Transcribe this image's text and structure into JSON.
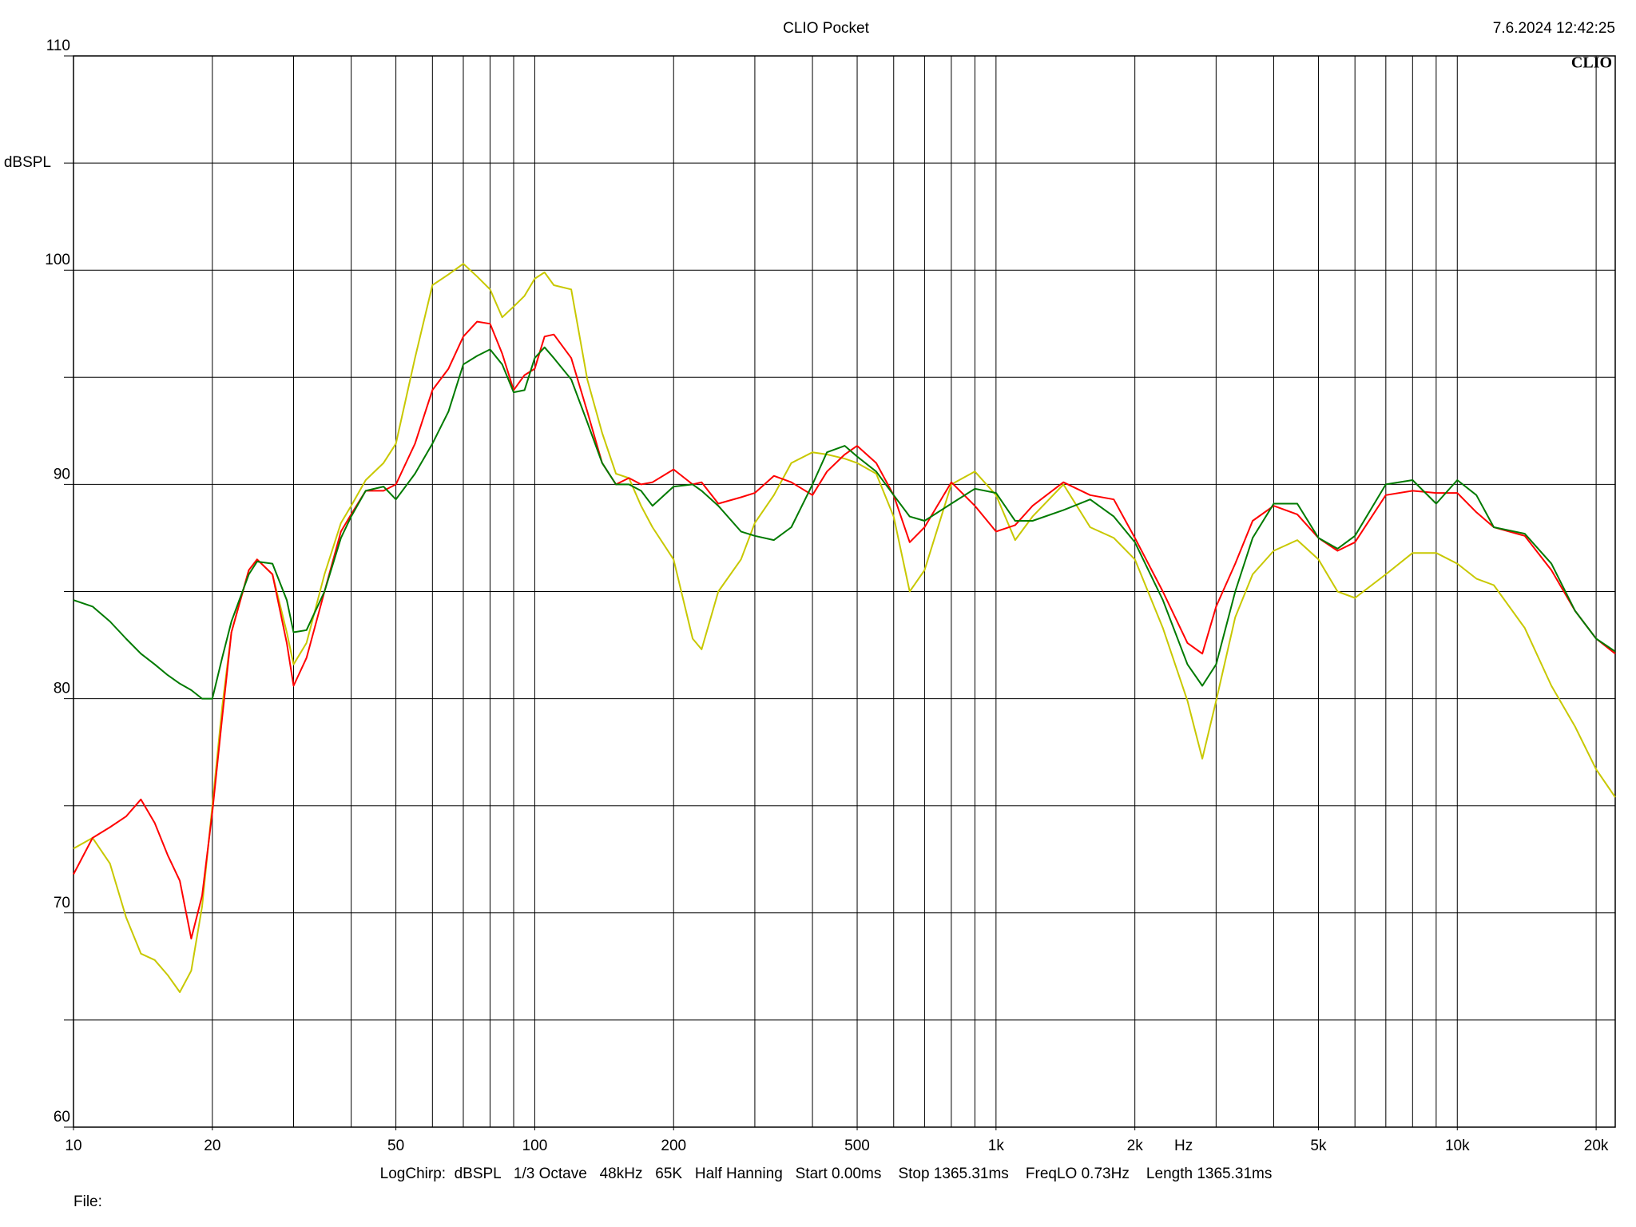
{
  "chart_data": {
    "type": "line",
    "title": "CLIO Pocket",
    "timestamp": "7.6.2024 12:42:25",
    "logo": "CLIO",
    "ylabel": "dBSPL",
    "xlabel": "Hz",
    "footer": "LogChirp:  dBSPL   1/3 Octave   48kHz   65K   Half Hanning   Start 0.00ms    Stop 1365.31ms    FreqLO 0.73Hz    Length 1365.31ms",
    "file_label": "File:",
    "xscale": "log",
    "grid": true,
    "xlim": [
      10,
      22000
    ],
    "ylim": [
      60,
      110
    ],
    "xticks": [
      10,
      20,
      50,
      100,
      200,
      500,
      {
        "value": 1000,
        "label": "1k"
      },
      {
        "value": 2000,
        "label": "2k"
      },
      {
        "value": 5000,
        "label": "5k"
      },
      {
        "value": 10000,
        "label": "10k"
      },
      {
        "value": 20000,
        "label": "20k"
      }
    ],
    "minor_xticks": [
      30,
      40,
      60,
      70,
      80,
      90,
      300,
      400,
      600,
      700,
      800,
      900,
      3000,
      4000,
      6000,
      7000,
      8000,
      9000
    ],
    "yticks": [
      60,
      70,
      80,
      90,
      100,
      110
    ],
    "minor_yticks": [
      65,
      75,
      85,
      95,
      105
    ],
    "x": [
      10,
      11,
      12,
      13,
      14,
      15,
      16,
      17,
      18,
      19,
      20,
      21,
      22,
      24,
      25,
      27,
      29,
      30,
      32,
      35,
      38,
      40,
      43,
      47,
      50,
      55,
      60,
      65,
      70,
      75,
      80,
      85,
      90,
      95,
      100,
      105,
      110,
      120,
      130,
      140,
      150,
      160,
      170,
      180,
      200,
      220,
      230,
      250,
      280,
      300,
      330,
      360,
      400,
      430,
      470,
      500,
      550,
      600,
      650,
      700,
      800,
      900,
      1000,
      1100,
      1200,
      1400,
      1600,
      1800,
      2000,
      2300,
      2600,
      2800,
      3000,
      3300,
      3600,
      4000,
      4500,
      5000,
      5500,
      6000,
      7000,
      8000,
      9000,
      10000,
      11000,
      12000,
      14000,
      16000,
      18000,
      20000,
      22000
    ],
    "series": [
      {
        "color": "#c8c800",
        "values": [
          73.0,
          73.5,
          72.3,
          69.8,
          68.1,
          67.8,
          67.1,
          66.3,
          67.3,
          70.3,
          75.0,
          79.6,
          83.1,
          86.0,
          86.5,
          85.8,
          83.1,
          81.6,
          82.6,
          85.8,
          88.2,
          89.0,
          90.2,
          91.0,
          91.9,
          95.9,
          99.3,
          99.8,
          100.3,
          99.7,
          99.1,
          97.8,
          98.3,
          98.8,
          99.6,
          99.9,
          99.3,
          99.1,
          94.9,
          92.4,
          90.5,
          90.3,
          89.0,
          88.0,
          86.5,
          82.8,
          82.3,
          85.0,
          86.5,
          88.2,
          89.5,
          91.0,
          91.5,
          91.4,
          91.2,
          91.0,
          90.5,
          88.5,
          85.0,
          86.0,
          90.0,
          90.6,
          89.5,
          87.4,
          88.5,
          90.0,
          88.0,
          87.5,
          86.5,
          83.3,
          79.9,
          77.2,
          79.9,
          83.8,
          85.8,
          86.9,
          87.4,
          86.5,
          85.0,
          84.7,
          85.8,
          86.8,
          86.8,
          86.3,
          85.6,
          85.3,
          83.3,
          80.6,
          78.7,
          76.7,
          75.4
        ]
      },
      {
        "color": "#ff0000",
        "values": [
          71.8,
          73.5,
          74.0,
          74.5,
          75.3,
          74.2,
          72.7,
          71.5,
          68.8,
          70.8,
          74.7,
          79.1,
          83.1,
          86.0,
          86.5,
          85.8,
          82.6,
          80.6,
          81.9,
          85.0,
          87.8,
          88.6,
          89.7,
          89.7,
          90.0,
          91.9,
          94.4,
          95.4,
          96.9,
          97.6,
          97.5,
          96.1,
          94.4,
          95.1,
          95.4,
          96.9,
          97.0,
          95.9,
          93.4,
          91.0,
          90.0,
          90.3,
          90.0,
          90.1,
          90.7,
          90.0,
          90.1,
          89.1,
          89.4,
          89.6,
          90.4,
          90.1,
          89.5,
          90.6,
          91.4,
          91.8,
          91.0,
          89.5,
          87.3,
          88.0,
          90.1,
          89.0,
          87.8,
          88.1,
          89.0,
          90.1,
          89.5,
          89.3,
          87.5,
          85.0,
          82.6,
          82.1,
          84.3,
          86.3,
          88.3,
          89.0,
          88.6,
          87.5,
          86.9,
          87.3,
          89.5,
          89.7,
          89.6,
          89.6,
          88.7,
          88.0,
          87.6,
          86.0,
          84.1,
          82.8,
          82.1
        ]
      },
      {
        "color": "#007a00",
        "values": [
          84.6,
          84.3,
          83.6,
          82.8,
          82.1,
          81.6,
          81.1,
          80.7,
          80.4,
          80.0,
          80.0,
          81.9,
          83.6,
          85.8,
          86.4,
          86.3,
          84.6,
          83.1,
          83.2,
          85.0,
          87.5,
          88.5,
          89.7,
          89.9,
          89.3,
          90.5,
          91.9,
          93.4,
          95.6,
          96.0,
          96.3,
          95.6,
          94.3,
          94.4,
          95.9,
          96.4,
          95.9,
          94.9,
          92.9,
          91.0,
          90.0,
          90.0,
          89.7,
          89.0,
          89.9,
          90.0,
          89.7,
          89.0,
          87.8,
          87.6,
          87.4,
          88.0,
          90.0,
          91.5,
          91.8,
          91.3,
          90.6,
          89.5,
          88.5,
          88.3,
          89.1,
          89.8,
          89.6,
          88.3,
          88.3,
          88.8,
          89.3,
          88.5,
          87.3,
          84.6,
          81.6,
          80.6,
          81.6,
          85.0,
          87.5,
          89.1,
          89.1,
          87.5,
          87.0,
          87.6,
          90.0,
          90.2,
          89.1,
          90.2,
          89.5,
          88.0,
          87.7,
          86.3,
          84.1,
          82.8,
          82.2
        ]
      }
    ]
  }
}
